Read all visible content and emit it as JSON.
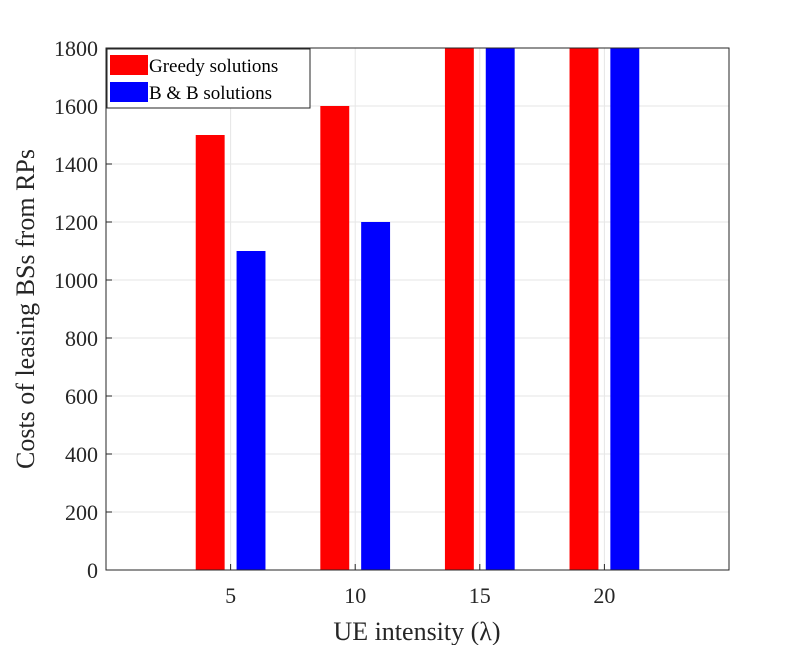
{
  "chart_data": {
    "type": "bar",
    "title": "",
    "xlabel": "UE intensity (λ)",
    "ylabel": "Costs of leasing BSs from RPs",
    "categories": [
      "5",
      "10",
      "15",
      "20"
    ],
    "series": [
      {
        "name": "Greedy solutions",
        "color": "#ff0000",
        "values": [
          1500,
          1600,
          1800,
          1800
        ]
      },
      {
        "name": "B & B solutions",
        "color": "#0000ff",
        "values": [
          1100,
          1200,
          1800,
          1800
        ]
      }
    ],
    "ylim": [
      0,
      1800
    ],
    "yticks": [
      0,
      200,
      400,
      600,
      800,
      1000,
      1200,
      1400,
      1600,
      1800
    ],
    "xlim": [
      0,
      25
    ],
    "grid": true,
    "legend_position": "top-left"
  }
}
